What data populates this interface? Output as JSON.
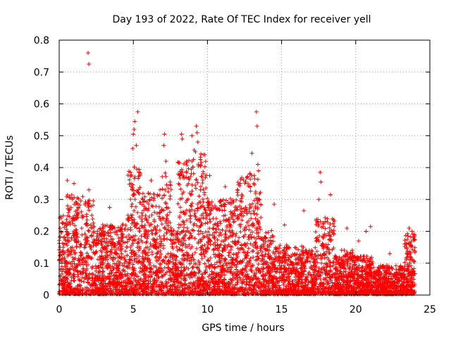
{
  "chart_data": {
    "type": "scatter",
    "title": "Day 193 of 2022, Rate Of TEC Index for receiver yell",
    "xlabel": "GPS time / hours",
    "ylabel": "ROTI / TECUs",
    "xlim": [
      0,
      25
    ],
    "ylim": [
      0,
      0.8
    ],
    "x_ticks": [
      "0",
      "5",
      "10",
      "15",
      "20",
      "25"
    ],
    "y_ticks": [
      "0",
      "0.1",
      "0.2",
      "0.3",
      "0.4",
      "0.5",
      "0.6",
      "0.7",
      "0.8"
    ],
    "grid": true,
    "marker": "plus",
    "color": "#ff0000",
    "series": [
      {
        "points": [
          [
            1.95,
            0.76
          ],
          [
            2.0,
            0.725
          ],
          [
            5.3,
            0.575
          ],
          [
            5.1,
            0.545
          ],
          [
            5.05,
            0.52
          ],
          [
            5.0,
            0.505
          ],
          [
            4.95,
            0.46
          ],
          [
            5.2,
            0.47
          ],
          [
            7.1,
            0.505
          ],
          [
            7.05,
            0.47
          ],
          [
            7.2,
            0.42
          ],
          [
            8.25,
            0.505
          ],
          [
            8.3,
            0.49
          ],
          [
            8.6,
            0.42
          ],
          [
            9.25,
            0.53
          ],
          [
            9.3,
            0.51
          ],
          [
            9.35,
            0.48
          ],
          [
            9.1,
            0.455
          ],
          [
            8.95,
            0.5
          ],
          [
            10.15,
            0.375
          ],
          [
            13.3,
            0.575
          ],
          [
            13.35,
            0.53
          ],
          [
            13.0,
            0.445
          ],
          [
            13.4,
            0.41
          ],
          [
            13.45,
            0.39
          ],
          [
            17.6,
            0.385
          ],
          [
            17.65,
            0.355
          ],
          [
            18.3,
            0.315
          ],
          [
            17.5,
            0.3
          ],
          [
            16.5,
            0.265
          ],
          [
            14.5,
            0.285
          ],
          [
            3.4,
            0.275
          ],
          [
            2.0,
            0.33
          ],
          [
            0.55,
            0.36
          ],
          [
            1.0,
            0.35
          ],
          [
            11.2,
            0.34
          ],
          [
            12.2,
            0.35
          ],
          [
            12.7,
            0.37
          ],
          [
            6.2,
            0.36
          ],
          [
            6.8,
            0.33
          ],
          [
            15.2,
            0.22
          ],
          [
            19.4,
            0.21
          ],
          [
            20.2,
            0.17
          ],
          [
            20.7,
            0.2
          ],
          [
            21.0,
            0.215
          ],
          [
            22.3,
            0.13
          ],
          [
            23.3,
            0.16
          ],
          [
            23.6,
            0.21
          ],
          [
            23.8,
            0.2
          ]
        ]
      }
    ]
  }
}
